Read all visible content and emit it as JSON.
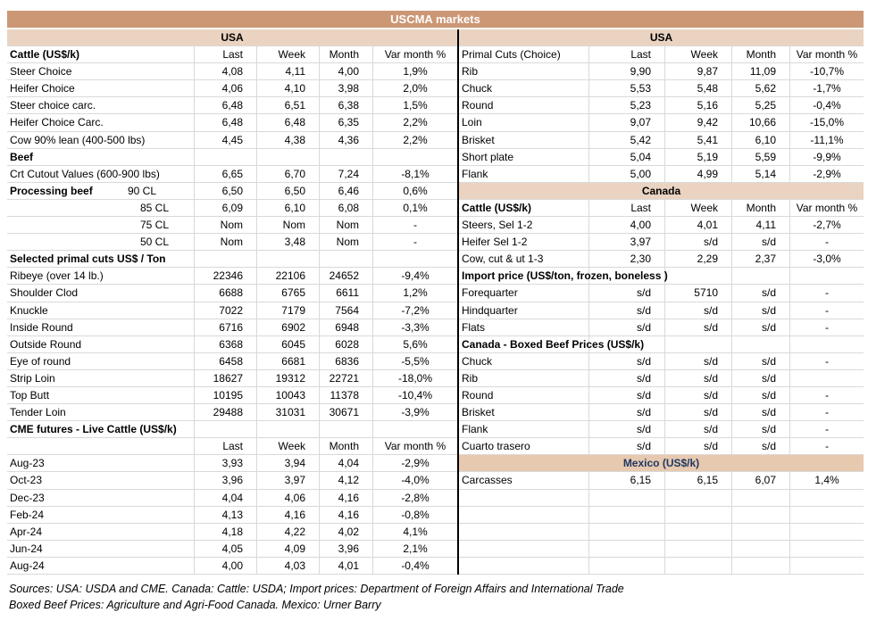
{
  "title": "USCMA markets",
  "colors": {
    "title_bar": "#CB9775",
    "title_text": "#FFFFFF",
    "region_band": "#EAD3C1",
    "mexico_band": "#E7C9AF",
    "mexico_text": "#1F3864",
    "gridline": "#D9D9D9"
  },
  "column_headers": [
    "Last",
    "Week",
    "Month",
    "Var month %"
  ],
  "left": {
    "rows": [
      {
        "type": "band",
        "label": "USA"
      },
      {
        "type": "header",
        "label": "Cattle (US$/k)"
      },
      {
        "type": "data",
        "label": "Steer Choice",
        "cells": [
          "4,08",
          "4,11",
          "4,00",
          "1,9%"
        ]
      },
      {
        "type": "data",
        "label": "Heifer Choice",
        "cells": [
          "4,06",
          "4,10",
          "3,98",
          "2,0%"
        ]
      },
      {
        "type": "data",
        "label": "Steer choice carc.",
        "cells": [
          "6,48",
          "6,51",
          "6,38",
          "1,5%"
        ]
      },
      {
        "type": "data",
        "label": "Heifer Choice Carc.",
        "cells": [
          "6,48",
          "6,48",
          "6,35",
          "2,2%"
        ]
      },
      {
        "type": "data",
        "label": "Cow 90% lean (400-500 lbs)",
        "cells": [
          "4,45",
          "4,38",
          "4,36",
          "2,2%"
        ]
      },
      {
        "type": "section",
        "label": "Beef"
      },
      {
        "type": "data",
        "label": "Crt Cutout Values (600-900 lbs)",
        "cells": [
          "6,65",
          "6,70",
          "7,24",
          "-8,1%"
        ]
      },
      {
        "type": "data",
        "label": "Processing beef",
        "sublabel": "90 CL",
        "label_bold": true,
        "cells": [
          "6,50",
          "6,50",
          "6,46",
          "0,6%"
        ]
      },
      {
        "type": "data",
        "label": "85 CL",
        "label_align": "right",
        "cells": [
          "6,09",
          "6,10",
          "6,08",
          "0,1%"
        ]
      },
      {
        "type": "data",
        "label": "75 CL",
        "label_align": "right",
        "cells": [
          "Nom",
          "Nom",
          "Nom",
          "-"
        ]
      },
      {
        "type": "data",
        "label": "50 CL",
        "label_align": "right",
        "cells": [
          "Nom",
          "3,48",
          "Nom",
          "-"
        ]
      },
      {
        "type": "section",
        "label": "Selected primal cuts US$ / Ton"
      },
      {
        "type": "data",
        "label": "Ribeye (over 14 lb.)",
        "cells": [
          "22346",
          "22106",
          "24652",
          "-9,4%"
        ]
      },
      {
        "type": "data",
        "label": "Shoulder Clod",
        "cells": [
          "6688",
          "6765",
          "6611",
          "1,2%"
        ]
      },
      {
        "type": "data",
        "label": "Knuckle",
        "cells": [
          "7022",
          "7179",
          "7564",
          "-7,2%"
        ]
      },
      {
        "type": "data",
        "label": "Inside Round",
        "cells": [
          "6716",
          "6902",
          "6948",
          "-3,3%"
        ]
      },
      {
        "type": "data",
        "label": "Outside Round",
        "cells": [
          "6368",
          "6045",
          "6028",
          "5,6%"
        ]
      },
      {
        "type": "data",
        "label": "Eye of round",
        "cells": [
          "6458",
          "6681",
          "6836",
          "-5,5%"
        ]
      },
      {
        "type": "data",
        "label": "Strip Loin",
        "cells": [
          "18627",
          "19312",
          "22721",
          "-18,0%"
        ]
      },
      {
        "type": "data",
        "label": "Top Butt",
        "cells": [
          "10195",
          "10043",
          "11378",
          "-10,4%"
        ]
      },
      {
        "type": "data",
        "label": "Tender Loin",
        "cells": [
          "29488",
          "31031",
          "30671",
          "-3,9%"
        ]
      },
      {
        "type": "section",
        "label": "CME futures - Live Cattle (US$/k)"
      },
      {
        "type": "header",
        "label": ""
      },
      {
        "type": "data",
        "label": "Aug-23",
        "cells": [
          "3,93",
          "3,94",
          "4,04",
          "-2,9%"
        ]
      },
      {
        "type": "data",
        "label": "Oct-23",
        "cells": [
          "3,96",
          "3,97",
          "4,12",
          "-4,0%"
        ]
      },
      {
        "type": "data",
        "label": "Dec-23",
        "cells": [
          "4,04",
          "4,06",
          "4,16",
          "-2,8%"
        ]
      },
      {
        "type": "data",
        "label": "Feb-24",
        "cells": [
          "4,13",
          "4,16",
          "4,16",
          "-0,8%"
        ]
      },
      {
        "type": "data",
        "label": "Apr-24",
        "cells": [
          "4,18",
          "4,22",
          "4,02",
          "4,1%"
        ]
      },
      {
        "type": "data",
        "label": "Jun-24",
        "cells": [
          "4,05",
          "4,09",
          "3,96",
          "2,1%"
        ]
      },
      {
        "type": "data",
        "label": "Aug-24",
        "cells": [
          "4,00",
          "4,03",
          "4,01",
          "-0,4%"
        ]
      }
    ]
  },
  "right": {
    "rows": [
      {
        "type": "band",
        "label": "USA"
      },
      {
        "type": "header",
        "label": "Primal Cuts (Choice)",
        "label_bold": false
      },
      {
        "type": "data",
        "label": "Rib",
        "cells": [
          "9,90",
          "9,87",
          "11,09",
          "-10,7%"
        ]
      },
      {
        "type": "data",
        "label": "Chuck",
        "cells": [
          "5,53",
          "5,48",
          "5,62",
          "-1,7%"
        ]
      },
      {
        "type": "data",
        "label": "Round",
        "cells": [
          "5,23",
          "5,16",
          "5,25",
          "-0,4%"
        ]
      },
      {
        "type": "data",
        "label": "Loin",
        "cells": [
          "9,07",
          "9,42",
          "10,66",
          "-15,0%"
        ]
      },
      {
        "type": "data",
        "label": "Brisket",
        "cells": [
          "5,42",
          "5,41",
          "6,10",
          "-11,1%"
        ]
      },
      {
        "type": "data",
        "label": "Short plate",
        "cells": [
          "5,04",
          "5,19",
          "5,59",
          "-9,9%"
        ]
      },
      {
        "type": "data",
        "label": "Flank",
        "cells": [
          "5,00",
          "4,99",
          "5,14",
          "-2,9%"
        ]
      },
      {
        "type": "band",
        "label": "Canada"
      },
      {
        "type": "header",
        "label": "Cattle (US$/k)"
      },
      {
        "type": "data",
        "label": "Steers, Sel 1-2",
        "cells": [
          "4,00",
          "4,01",
          "4,11",
          "-2,7%"
        ]
      },
      {
        "type": "data",
        "label": "Heifer Sel 1-2",
        "cells": [
          "3,97",
          "s/d",
          "s/d",
          "-"
        ]
      },
      {
        "type": "data",
        "label": "Cow, cut & ut 1-3",
        "cells": [
          "2,30",
          "2,29",
          "2,37",
          "-3,0%"
        ]
      },
      {
        "type": "section",
        "label": "Import price (US$/ton, frozen, boneless )"
      },
      {
        "type": "data",
        "label": "Forequarter",
        "cells": [
          "s/d",
          "5710",
          "s/d",
          "-"
        ]
      },
      {
        "type": "data",
        "label": "Hindquarter",
        "cells": [
          "s/d",
          "s/d",
          "s/d",
          "-"
        ]
      },
      {
        "type": "data",
        "label": "Flats",
        "cells": [
          "s/d",
          "s/d",
          "s/d",
          "-"
        ]
      },
      {
        "type": "section",
        "label": "Canada - Boxed Beef Prices (US$/k)"
      },
      {
        "type": "data",
        "label": "Chuck",
        "cells": [
          "s/d",
          "s/d",
          "s/d",
          "-"
        ]
      },
      {
        "type": "data",
        "label": "Rib",
        "cells": [
          "s/d",
          "s/d",
          "s/d",
          ""
        ]
      },
      {
        "type": "data",
        "label": "Round",
        "cells": [
          "s/d",
          "s/d",
          "s/d",
          "-"
        ]
      },
      {
        "type": "data",
        "label": "Brisket",
        "cells": [
          "s/d",
          "s/d",
          "s/d",
          "-"
        ]
      },
      {
        "type": "data",
        "label": "Flank",
        "cells": [
          "s/d",
          "s/d",
          "s/d",
          "-"
        ]
      },
      {
        "type": "data",
        "label": "Cuarto trasero",
        "cells": [
          "s/d",
          "s/d",
          "s/d",
          "-"
        ]
      },
      {
        "type": "band",
        "label": "Mexico (US$/k)",
        "style": "mexico"
      },
      {
        "type": "data",
        "label": "Carcasses",
        "cells": [
          "6,15",
          "6,15",
          "6,07",
          "1,4%"
        ]
      },
      {
        "type": "empty"
      },
      {
        "type": "empty"
      },
      {
        "type": "empty"
      },
      {
        "type": "empty"
      },
      {
        "type": "empty"
      }
    ]
  },
  "footer": {
    "line1": "Sources: USA: USDA and CME. Canada: Cattle: USDA; Import prices: Department of Foreign Affairs and International Trade",
    "line2": "Boxed Beef Prices: Agriculture and Agri-Food Canada. Mexico: Urner Barry"
  }
}
